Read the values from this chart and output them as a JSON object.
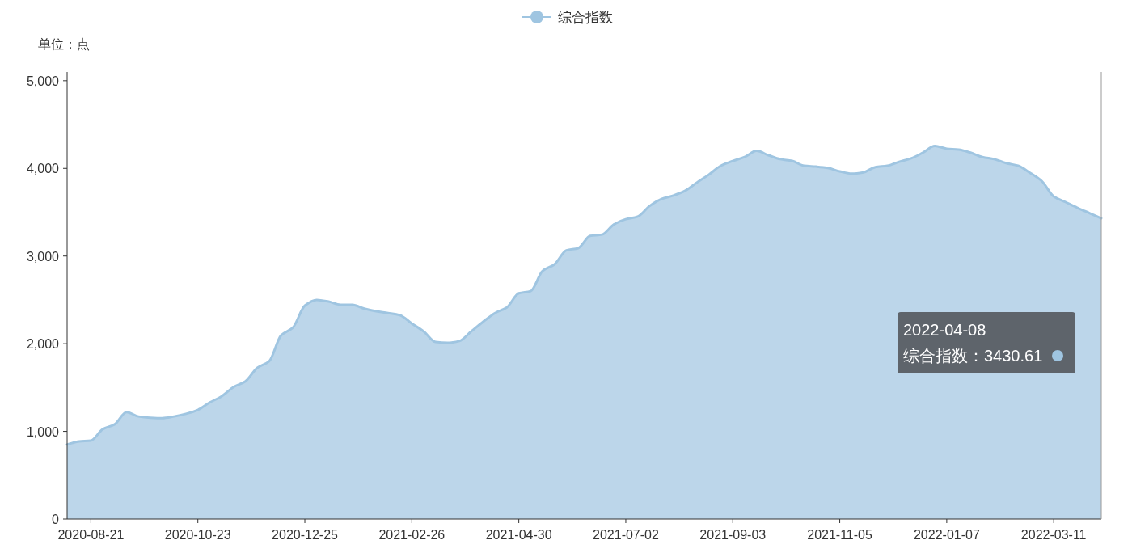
{
  "chart_data": {
    "type": "area",
    "ylabel": "单位：点",
    "legend": "top",
    "grid": false,
    "xlim": [
      "2020-08-07",
      "2022-04-08"
    ],
    "xticks": [
      "2020-08-21",
      "2020-10-23",
      "2020-12-25",
      "2021-02-26",
      "2021-04-30",
      "2021-07-02",
      "2021-09-03",
      "2021-11-05",
      "2022-01-07",
      "2022-03-11"
    ],
    "ylim": [
      0,
      5100
    ],
    "yticks": [
      0,
      {
        "value": 1000,
        "label": "1,000"
      },
      {
        "value": 2000,
        "label": "2,000"
      },
      {
        "value": 3000,
        "label": "3,000"
      },
      {
        "value": 4000,
        "label": "4,000"
      },
      {
        "value": 5000,
        "label": "5,000"
      }
    ],
    "annotations": [
      "2022-04-08\n综合指数：3430.61"
    ],
    "series": [
      {
        "name": "综合指数",
        "color": "#9fc5e1",
        "x": [
          "2020-08-07",
          "2020-08-14",
          "2020-08-21",
          "2020-08-28",
          "2020-09-04",
          "2020-09-11",
          "2020-09-18",
          "2020-09-25",
          "2020-10-02",
          "2020-10-09",
          "2020-10-16",
          "2020-10-23",
          "2020-10-30",
          "2020-11-06",
          "2020-11-13",
          "2020-11-20",
          "2020-11-27",
          "2020-12-04",
          "2020-12-11",
          "2020-12-18",
          "2020-12-25",
          "2021-01-01",
          "2021-01-08",
          "2021-01-15",
          "2021-01-22",
          "2021-01-29",
          "2021-02-05",
          "2021-02-12",
          "2021-02-19",
          "2021-02-26",
          "2021-03-05",
          "2021-03-12",
          "2021-03-19",
          "2021-03-26",
          "2021-04-02",
          "2021-04-09",
          "2021-04-16",
          "2021-04-23",
          "2021-04-30",
          "2021-05-07",
          "2021-05-14",
          "2021-05-21",
          "2021-05-28",
          "2021-06-04",
          "2021-06-11",
          "2021-06-18",
          "2021-06-25",
          "2021-07-02",
          "2021-07-09",
          "2021-07-16",
          "2021-07-23",
          "2021-07-30",
          "2021-08-06",
          "2021-08-13",
          "2021-08-20",
          "2021-08-27",
          "2021-09-03",
          "2021-09-10",
          "2021-09-17",
          "2021-09-24",
          "2021-10-01",
          "2021-10-08",
          "2021-10-15",
          "2021-10-22",
          "2021-10-29",
          "2021-11-05",
          "2021-11-12",
          "2021-11-19",
          "2021-11-26",
          "2021-12-03",
          "2021-12-10",
          "2021-12-17",
          "2021-12-24",
          "2021-12-31",
          "2022-01-07",
          "2022-01-14",
          "2022-01-21",
          "2022-01-28",
          "2022-02-04",
          "2022-02-11",
          "2022-02-18",
          "2022-02-25",
          "2022-03-04",
          "2022-03-11",
          "2022-03-18",
          "2022-03-25",
          "2022-04-01",
          "2022-04-08"
        ],
        "values": [
          850,
          885,
          895,
          1025,
          1080,
          1220,
          1170,
          1155,
          1150,
          1170,
          1200,
          1245,
          1330,
          1400,
          1505,
          1570,
          1725,
          1800,
          2095,
          2185,
          2435,
          2500,
          2480,
          2445,
          2445,
          2400,
          2370,
          2350,
          2325,
          2230,
          2140,
          2020,
          2010,
          2030,
          2140,
          2250,
          2350,
          2415,
          2575,
          2600,
          2830,
          2905,
          3065,
          3090,
          3230,
          3245,
          3360,
          3420,
          3450,
          3570,
          3650,
          3690,
          3745,
          3840,
          3930,
          4030,
          4085,
          4130,
          4200,
          4150,
          4105,
          4085,
          4030,
          4020,
          4005,
          3965,
          3940,
          3955,
          4015,
          4030,
          4075,
          4115,
          4180,
          4255,
          4225,
          4215,
          4180,
          4130,
          4105,
          4060,
          4030,
          3950,
          3855,
          3680,
          3615,
          3550,
          3490,
          3430.61
        ]
      }
    ]
  }
}
